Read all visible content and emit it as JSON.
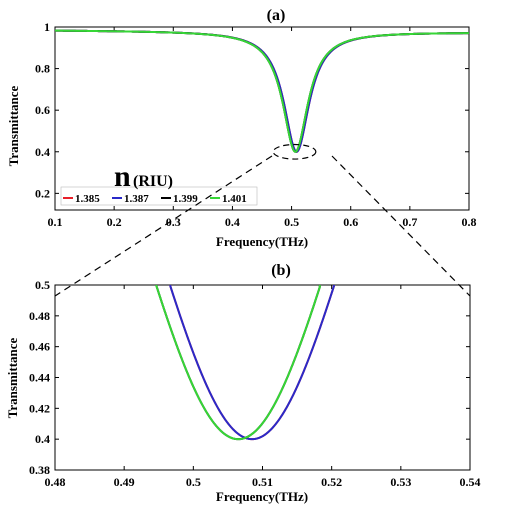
{
  "chart_data": [
    {
      "panel_label": "(a)",
      "type": "line",
      "xlabel": "Frequency(THz)",
      "ylabel": "Transmittance",
      "xlim": [
        0.1,
        0.8
      ],
      "ylim": [
        0.12,
        1.0
      ],
      "xticks": [
        "0.1",
        "0.2",
        "0.3",
        "0.4",
        "0.5",
        "0.6",
        "0.7",
        "0.8"
      ],
      "yticks": [
        "0.2",
        "0.4",
        "0.6",
        "0.8",
        "1"
      ],
      "legend_title_main": "n",
      "legend_title_unit": "(RIU)",
      "legend_placement": "bottom-left",
      "grid": false,
      "series": [
        {
          "name": "1.385",
          "color": "#e8202a",
          "resonance": {
            "f0": 0.5085,
            "min": 0.4
          }
        },
        {
          "name": "1.387",
          "color": "#2a2ac8",
          "resonance": {
            "f0": 0.5085,
            "min": 0.4
          }
        },
        {
          "name": "1.399",
          "color": "#000000",
          "resonance": {
            "f0": 0.5065,
            "min": 0.4
          }
        },
        {
          "name": "1.401",
          "color": "#36d636",
          "resonance": {
            "f0": 0.5065,
            "min": 0.4
          }
        }
      ],
      "resonance_width": 0.026,
      "baseline": [
        [
          0.1,
          0.985
        ],
        [
          0.8,
          0.975
        ]
      ],
      "highlight_ellipse": {
        "center": [
          0.505,
          0.4
        ],
        "rx": 0.036,
        "ry": 0.035
      }
    },
    {
      "panel_label": "(b)",
      "type": "line",
      "xlabel": "Frequency(THz)",
      "ylabel": "Transmittance",
      "xlim": [
        0.48,
        0.54
      ],
      "ylim": [
        0.38,
        0.5
      ],
      "xticks": [
        "0.48",
        "0.49",
        "0.5",
        "0.51",
        "0.52",
        "0.53",
        "0.54"
      ],
      "yticks": [
        "0.38",
        "0.4",
        "0.42",
        "0.44",
        "0.46",
        "0.48",
        "0.5"
      ],
      "grid": false
    }
  ]
}
